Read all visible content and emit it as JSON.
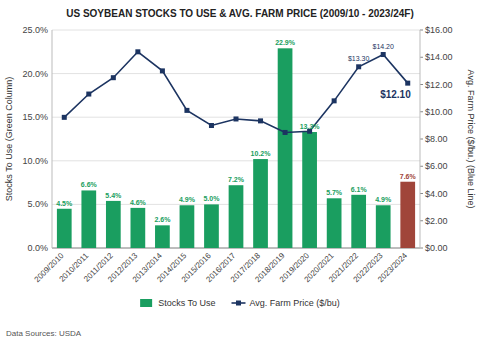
{
  "chart_data": {
    "type": "bar",
    "title": "US SOYBEAN STOCKS TO USE & AVG. FARM PRICE (2009/10 - 2023/24F)",
    "categories": [
      "2009/2010",
      "2010/2011",
      "2011/2012",
      "2012/2013",
      "2013/2014",
      "2014/2015",
      "2015/2016",
      "2016/2017",
      "2017/2018",
      "2018/2019",
      "2019/2020",
      "2020/2021",
      "2021/2022",
      "2022/2023",
      "2023/2024"
    ],
    "series": [
      {
        "name": "Stocks To Use",
        "type": "bar",
        "values": [
          4.5,
          6.6,
          5.4,
          4.6,
          2.6,
          4.9,
          5.0,
          7.2,
          10.2,
          22.9,
          13.3,
          5.7,
          6.1,
          4.9,
          7.6
        ],
        "colors": [
          "#1a9e60",
          "#1a9e60",
          "#1a9e60",
          "#1a9e60",
          "#1a9e60",
          "#1a9e60",
          "#1a9e60",
          "#1a9e60",
          "#1a9e60",
          "#1a9e60",
          "#1a9e60",
          "#1a9e60",
          "#1a9e60",
          "#1a9e60",
          "#a0453a"
        ],
        "data_labels": true,
        "value_labels": [
          "4.5%",
          "6.6%",
          "5.4%",
          "4.6%",
          "2.6%",
          "4.9%",
          "5.0%",
          "7.2%",
          "10.2%",
          "22.9%",
          "13.3%",
          "5.7%",
          "6.1%",
          "4.9%",
          "7.6%"
        ]
      },
      {
        "name": "Avg. Farm Price ($/bu)",
        "type": "line",
        "axis": "y2",
        "color": "#1c3461",
        "marker": "square",
        "line_style": "solid",
        "values": [
          9.59,
          11.3,
          12.5,
          14.4,
          13.0,
          10.1,
          8.99,
          9.47,
          9.33,
          8.48,
          8.57,
          10.8,
          13.3,
          14.2,
          12.1
        ],
        "data_labels": true,
        "value_labels": [
          null,
          null,
          null,
          null,
          null,
          null,
          null,
          null,
          null,
          null,
          null,
          null,
          "$13.30",
          "$14.20",
          "$12.10"
        ]
      }
    ],
    "ylabel": "Stocks To Use (Green Column)",
    "y2label": "Avg. Farm Price ($/bu.) (Blue Line)",
    "ylim": [
      0,
      25.0
    ],
    "yticks": [
      {
        "value": 0.0,
        "label": "0.0%"
      },
      {
        "value": 5.0,
        "label": "5.0%"
      },
      {
        "value": 10.0,
        "label": "10.0%"
      },
      {
        "value": 15.0,
        "label": "15.0%"
      },
      {
        "value": 20.0,
        "label": "20.0%"
      },
      {
        "value": 25.0,
        "label": "25.0%"
      }
    ],
    "y2lim": [
      0,
      16.0
    ],
    "y2ticks": [
      {
        "value": 0.0,
        "label": "$0.00"
      },
      {
        "value": 2.0,
        "label": "$2.00"
      },
      {
        "value": 4.0,
        "label": "$4.00"
      },
      {
        "value": 6.0,
        "label": "$6.00"
      },
      {
        "value": 8.0,
        "label": "$8.00"
      },
      {
        "value": 10.0,
        "label": "$10.00"
      },
      {
        "value": 12.0,
        "label": "$12.00"
      },
      {
        "value": 14.0,
        "label": "$14.00"
      },
      {
        "value": 16.0,
        "label": "$16.00"
      }
    ],
    "grid": true,
    "legend": "bottom",
    "source": "Data Sources: USDA"
  }
}
